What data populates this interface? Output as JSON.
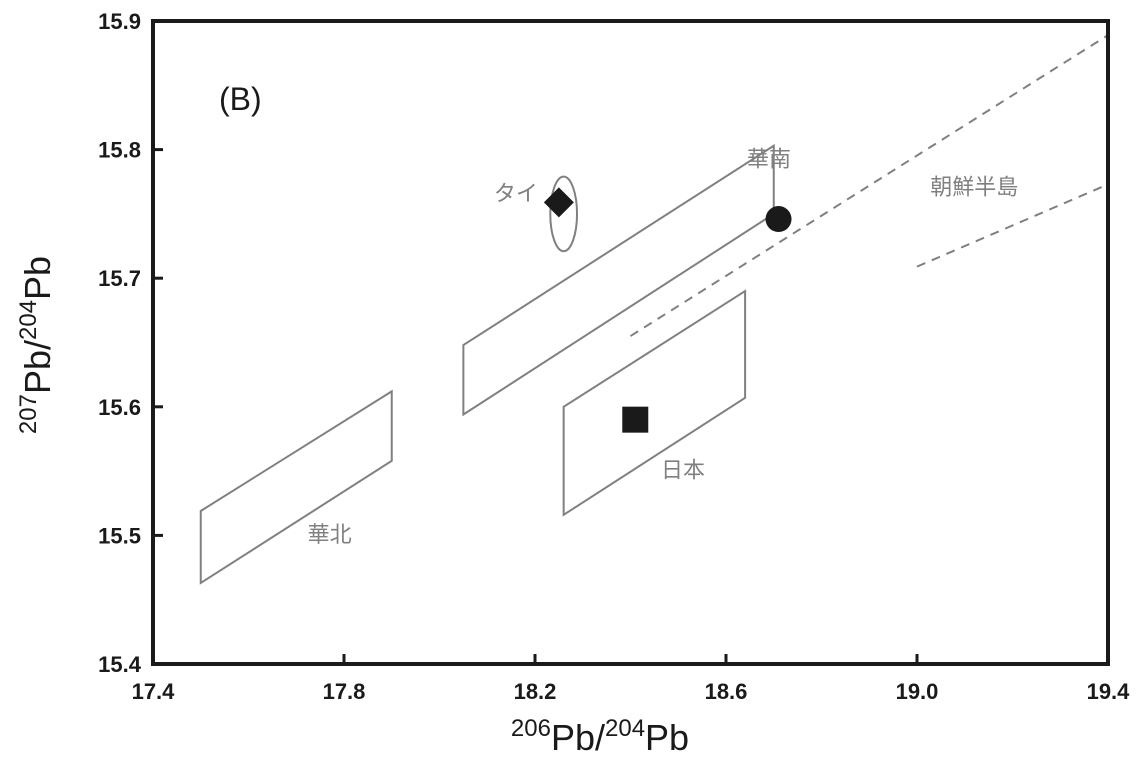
{
  "chart_data": {
    "type": "scatter",
    "panel_label": "(B)",
    "xlabel": {
      "sup1": "206",
      "base1": "Pb/",
      "sup2": "204",
      "base2": "Pb"
    },
    "ylabel": {
      "sup1": "207",
      "base1": "Pb/",
      "sup2": "204",
      "base2": "Pb"
    },
    "xlim": [
      17.4,
      19.4
    ],
    "ylim": [
      15.4,
      15.9
    ],
    "xticks": [
      "17.4",
      "17.8",
      "18.2",
      "18.6",
      "19.0",
      "19.4"
    ],
    "yticks": [
      "15.4",
      "15.5",
      "15.6",
      "15.7",
      "15.8",
      "15.9"
    ],
    "regions": [
      {
        "label": "華北",
        "label_at": [
          17.77,
          15.495
        ],
        "polygon": [
          [
            17.5,
            15.463
          ],
          [
            17.5,
            15.519
          ],
          [
            17.9,
            15.612
          ],
          [
            17.9,
            15.558
          ]
        ]
      },
      {
        "label": "華南",
        "label_at": [
          18.69,
          15.787
        ],
        "polygon": [
          [
            18.05,
            15.594
          ],
          [
            18.05,
            15.648
          ],
          [
            18.7,
            15.803
          ],
          [
            18.7,
            15.75
          ]
        ]
      },
      {
        "label": "日本",
        "label_at": [
          18.51,
          15.545
        ],
        "polygon": [
          [
            18.26,
            15.516
          ],
          [
            18.26,
            15.6
          ],
          [
            18.64,
            15.69
          ],
          [
            18.64,
            15.607
          ]
        ]
      },
      {
        "label": "タイ",
        "label_at": [
          18.16,
          15.76
        ],
        "ellipse": {
          "cx": 18.26,
          "cy": 15.75,
          "rx": 0.028,
          "ry": 0.029
        }
      }
    ],
    "dashed_lines": [
      {
        "from": [
          18.4,
          15.655
        ],
        "to": [
          19.4,
          15.889
        ]
      },
      {
        "from": [
          19.0,
          15.709
        ],
        "to": [
          19.4,
          15.773
        ]
      }
    ],
    "korea_label": {
      "label": "朝鮮半島",
      "at": [
        19.12,
        15.765
      ]
    },
    "points": [
      {
        "marker": "diamond",
        "x": 18.25,
        "y": 15.759
      },
      {
        "marker": "circle",
        "x": 18.71,
        "y": 15.746
      },
      {
        "marker": "square",
        "x": 18.41,
        "y": 15.59
      }
    ]
  }
}
